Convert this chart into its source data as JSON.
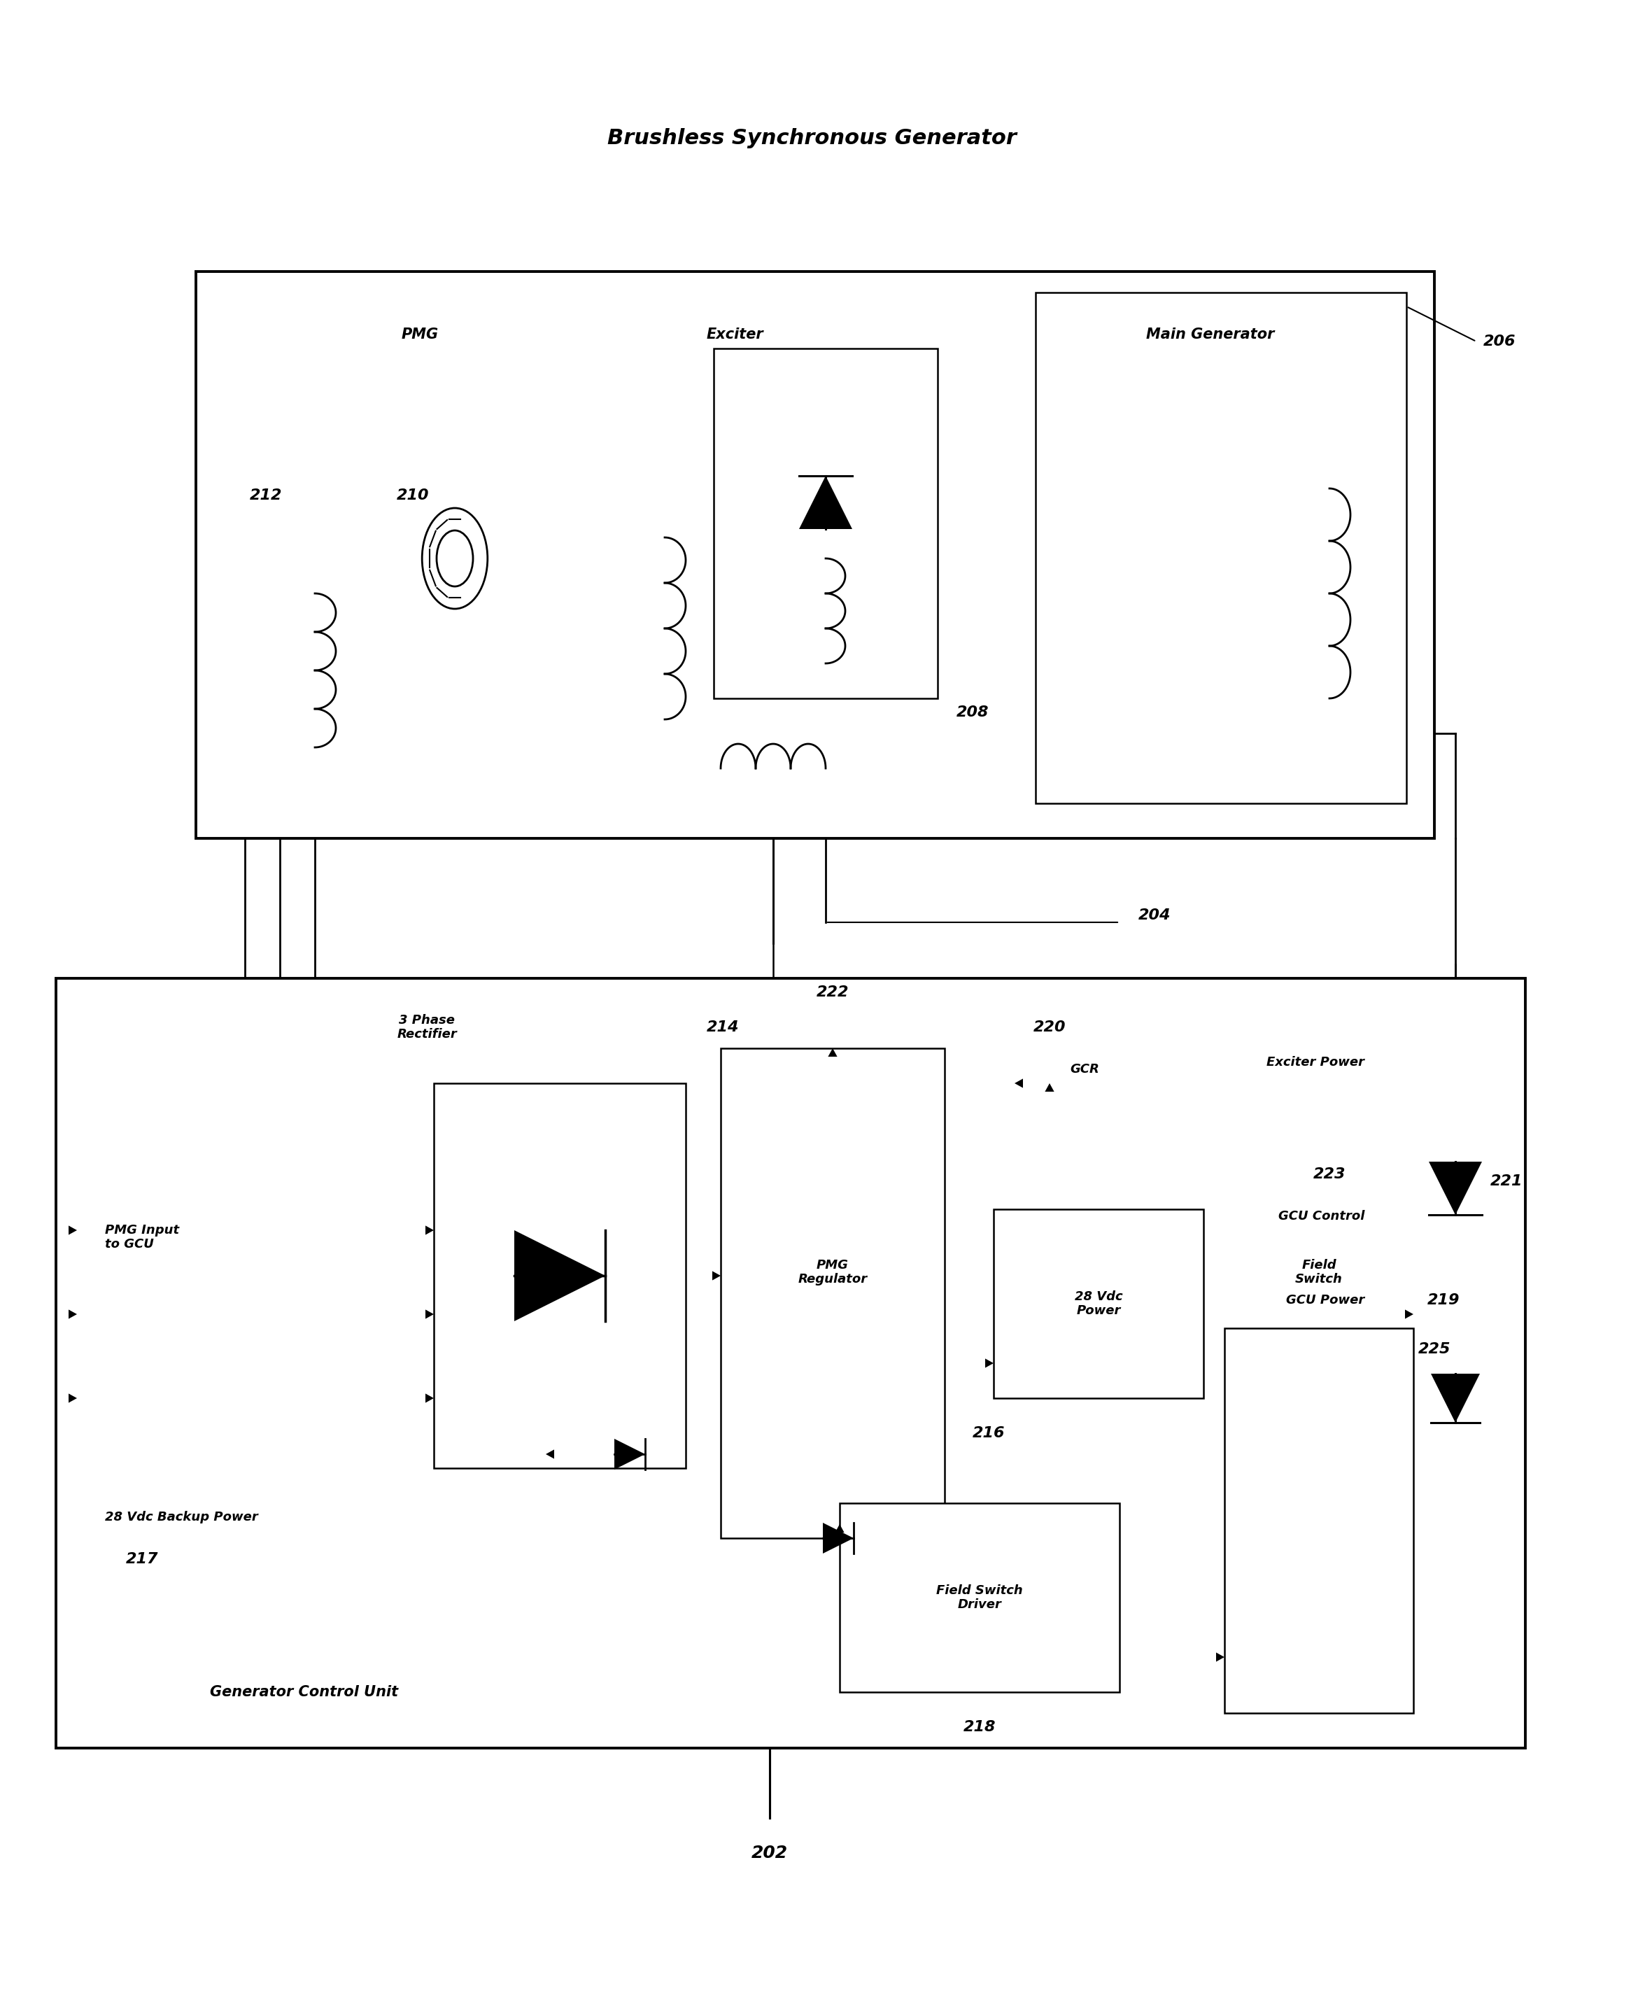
{
  "fig_width": 23.31,
  "fig_height": 28.48,
  "title": "Brushless Synchronous Generator",
  "bg_color": "#ffffff",
  "labels": {
    "202": "202",
    "204": "204",
    "206": "206",
    "208": "208",
    "210": "210",
    "212": "212",
    "214": "214",
    "216": "216",
    "217": "217",
    "218": "218",
    "219": "219",
    "220": "220",
    "221": "221",
    "222": "222",
    "223": "223",
    "225": "225",
    "pmg": "PMG",
    "exciter": "Exciter",
    "main_gen": "Main Generator",
    "three_phase": "3 Phase\nRectifier",
    "pmg_reg": "PMG\nRegulator",
    "vdc": "28 Vdc\nPower",
    "fsd": "Field Switch\nDriver",
    "fs": "Field\nSwitch",
    "gcr": "GCR",
    "gcu_ctrl": "GCU Control",
    "exc_pwr": "Exciter Power",
    "gcu_pwr": "GCU Power",
    "pmg_input": "PMG Input\nto GCU",
    "backup": "28 Vdc Backup Power",
    "gcu_unit": "Generator Control Unit"
  }
}
